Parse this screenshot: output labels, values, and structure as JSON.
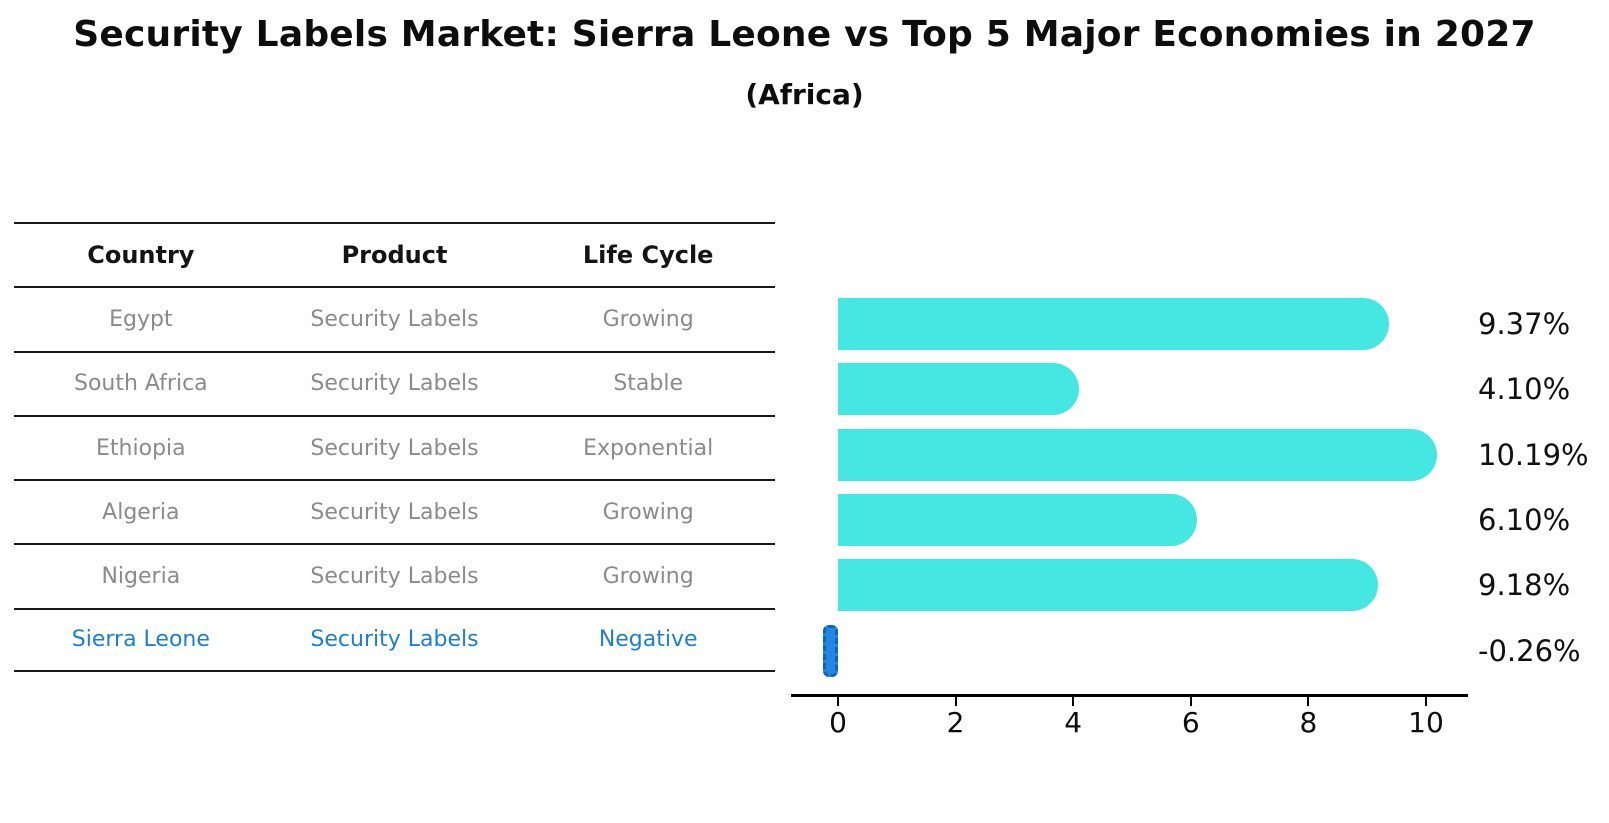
{
  "page": {
    "title": "Security Labels Market: Sierra Leone vs Top 5 Major Economies in 2027",
    "subtitle": "(Africa)"
  },
  "table": {
    "headers": [
      "Country",
      "Product",
      "Life Cycle"
    ],
    "rows": [
      {
        "country": "Egypt",
        "product": "Security Labels",
        "life_cycle": "Growing",
        "highlight": false
      },
      {
        "country": "South Africa",
        "product": "Security Labels",
        "life_cycle": "Stable",
        "highlight": false
      },
      {
        "country": "Ethiopia",
        "product": "Security Labels",
        "life_cycle": "Exponential",
        "highlight": false
      },
      {
        "country": "Algeria",
        "product": "Security Labels",
        "life_cycle": "Growing",
        "highlight": false
      },
      {
        "country": "Nigeria",
        "product": "Security Labels",
        "life_cycle": "Growing",
        "highlight": false
      },
      {
        "country": "Sierra Leone",
        "product": "Security Labels",
        "life_cycle": "Negative",
        "highlight": true
      }
    ]
  },
  "chart_data": {
    "type": "bar",
    "orientation": "horizontal",
    "title": "Security Labels Market: Sierra Leone vs Top 5 Major Economies in 2027",
    "subtitle": "(Africa)",
    "categories": [
      "Egypt",
      "South Africa",
      "Ethiopia",
      "Algeria",
      "Nigeria",
      "Sierra Leone"
    ],
    "values": [
      9.37,
      4.1,
      10.19,
      6.1,
      9.18,
      -0.26
    ],
    "value_labels": [
      "9.37%",
      "4.10%",
      "10.19%",
      "6.10%",
      "9.18%",
      "-0.26%"
    ],
    "xticks": [
      0,
      2,
      4,
      6,
      8,
      10
    ],
    "xlim": [
      -0.8,
      10.7
    ],
    "xlabel": "",
    "ylabel": "",
    "grid": false,
    "legend": false,
    "bar_color": "#44e7e1",
    "negative_bar_color": "#2287e2",
    "highlight_text_color": "#1d7fd1",
    "axis_color": "#000000"
  }
}
